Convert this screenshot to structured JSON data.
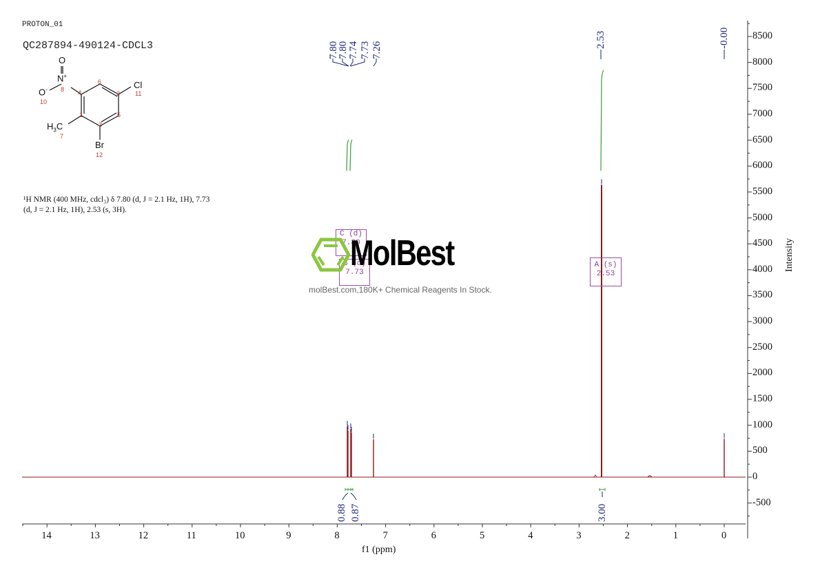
{
  "header": {
    "experiment": "PROTON_01",
    "sample_id": "QC287894-490124-CDCL3"
  },
  "molecule": {
    "atoms": [
      {
        "label": "O",
        "num": ""
      },
      {
        "label": "N+",
        "num": "8"
      },
      {
        "label": "O-",
        "num": "10"
      },
      {
        "label": "Cl",
        "num": "11"
      },
      {
        "label": "H3C",
        "num": "7"
      },
      {
        "label": "Br",
        "num": "12"
      }
    ],
    "ring_numbers": [
      "4",
      "6",
      "2",
      "5",
      "3",
      "1"
    ]
  },
  "nmr_description": {
    "line1": "¹H NMR (400 MHz, cdcl₃) δ 7.80 (d, J = 2.1 Hz, 1H), 7.73",
    "line2": "(d, J = 2.1 Hz, 1H), 2.53 (s, 3H)."
  },
  "watermark": {
    "brand": "MolBest",
    "tagline": "molBest.com,180K+ Chemical Reagents In Stock."
  },
  "multiplets": [
    {
      "letter": "C",
      "mult": "(d)",
      "shift": "7.80"
    },
    {
      "letter": "B",
      "mult": "(d)",
      "shift": "7.73"
    },
    {
      "letter": "A",
      "mult": "(s)",
      "shift": "2.53"
    }
  ],
  "colors": {
    "spectrum": "#8b1a1a",
    "integral": "#3a9a3a",
    "peak_label": "#1a237e",
    "multiplet_box": "#9c4aa8",
    "axis": "#333333",
    "logo_green": "#8cc63f"
  },
  "chart_data": {
    "type": "line",
    "title": "QC287894-490124-CDCL3",
    "xlabel": "f1 (ppm)",
    "ylabel": "Intensity",
    "xlim": [
      14.5,
      -0.4
    ],
    "ylim": [
      -800,
      8800
    ],
    "x_ticks": [
      "14",
      "13",
      "12",
      "11",
      "10",
      "9",
      "8",
      "7",
      "6",
      "5",
      "4",
      "3",
      "2",
      "1",
      "0"
    ],
    "y_ticks": [
      "8500",
      "8000",
      "7500",
      "7000",
      "6500",
      "6000",
      "5500",
      "5000",
      "4500",
      "4000",
      "3500",
      "3000",
      "2500",
      "2000",
      "1500",
      "1000",
      "500",
      "0",
      "-500"
    ],
    "peaks": [
      {
        "ppm": 7.8,
        "label": "7.80",
        "intensity": 980
      },
      {
        "ppm": 7.8,
        "label": "7.80",
        "intensity": 900
      },
      {
        "ppm": 7.74,
        "label": "7.74",
        "intensity": 930
      },
      {
        "ppm": 7.73,
        "label": "7.73",
        "intensity": 860
      },
      {
        "ppm": 7.26,
        "label": "7.26",
        "intensity": 730
      },
      {
        "ppm": 2.53,
        "label": "2.53",
        "intensity": 5640
      },
      {
        "ppm": 0.0,
        "label": "-0.00",
        "intensity": 740
      }
    ],
    "peak_labels": [
      "7.80",
      "7.80",
      "7.74",
      "7.73",
      "7.26",
      "2.53",
      "-0.00"
    ],
    "integrals": [
      {
        "range": [
          7.82,
          7.78
        ],
        "value": "0.88"
      },
      {
        "range": [
          7.75,
          7.71
        ],
        "value": "0.87"
      },
      {
        "range": [
          2.56,
          2.5
        ],
        "value": "3.00"
      }
    ],
    "grid": false,
    "legend": "none"
  }
}
